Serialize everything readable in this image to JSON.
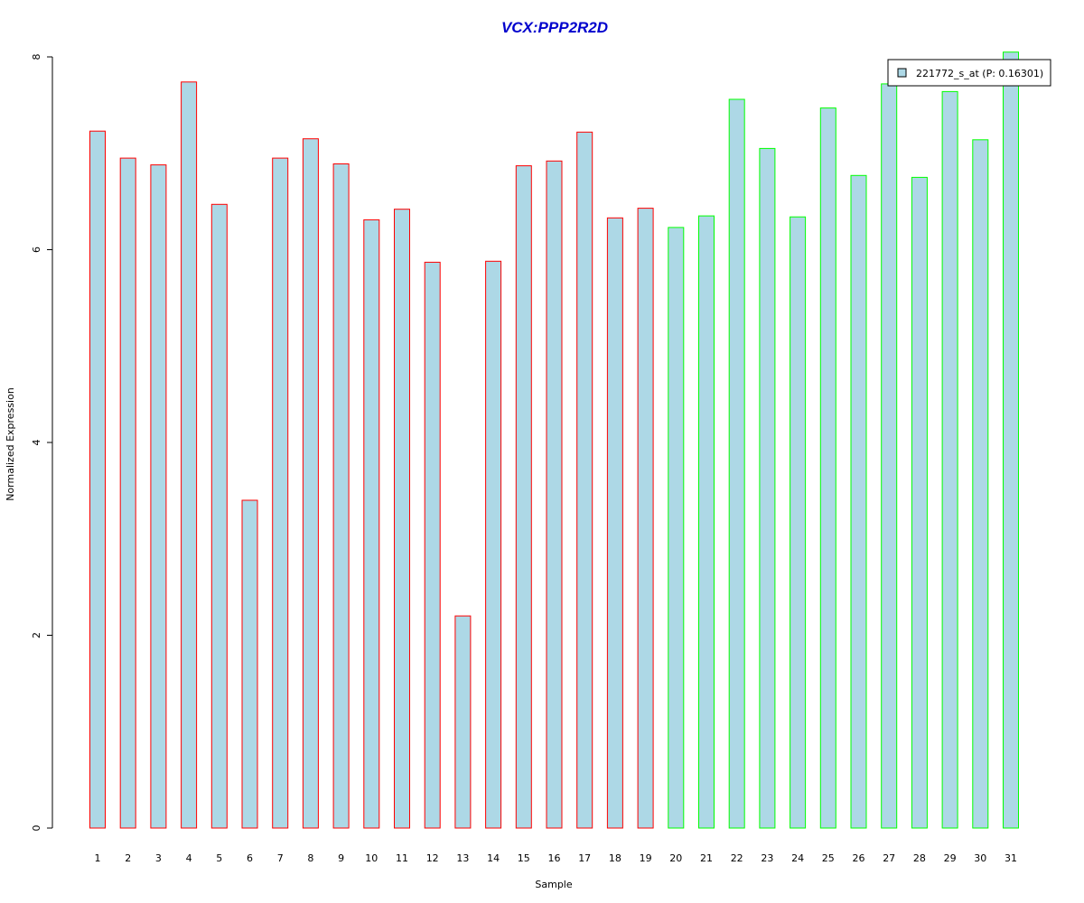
{
  "chart_data": {
    "type": "bar",
    "title": "VCX:PPP2R2D",
    "xlabel": "Sample",
    "ylabel": "Normalized Expression",
    "ylim": [
      0,
      8
    ],
    "yticks": [
      "0",
      "2",
      "4",
      "6",
      "8"
    ],
    "categories": [
      "1",
      "2",
      "3",
      "4",
      "5",
      "6",
      "7",
      "8",
      "9",
      "10",
      "11",
      "12",
      "13",
      "14",
      "15",
      "16",
      "17",
      "18",
      "19",
      "20",
      "21",
      "22",
      "23",
      "24",
      "25",
      "26",
      "27",
      "28",
      "29",
      "30",
      "31"
    ],
    "values": [
      7.23,
      6.95,
      6.88,
      7.74,
      6.47,
      3.4,
      6.95,
      7.15,
      6.89,
      6.31,
      6.42,
      5.87,
      2.2,
      5.88,
      6.87,
      6.92,
      7.22,
      6.33,
      6.43,
      6.23,
      6.35,
      7.56,
      7.05,
      6.34,
      7.47,
      6.77,
      7.72,
      6.75,
      7.64,
      7.14,
      8.05
    ],
    "groups": [
      "red",
      "red",
      "red",
      "red",
      "red",
      "red",
      "red",
      "red",
      "red",
      "red",
      "red",
      "red",
      "red",
      "red",
      "red",
      "red",
      "red",
      "red",
      "red",
      "green",
      "green",
      "green",
      "green",
      "green",
      "green",
      "green",
      "green",
      "green",
      "green",
      "green",
      "green"
    ],
    "legend": {
      "label": "221772_s_at (P: 0.16301)",
      "position": "top-right"
    },
    "colors": {
      "fill": "#add8e6",
      "border_red": "#ff0000",
      "border_green": "#00ff00",
      "title": "#0000cd",
      "axis": "#000000"
    },
    "grid": false
  }
}
